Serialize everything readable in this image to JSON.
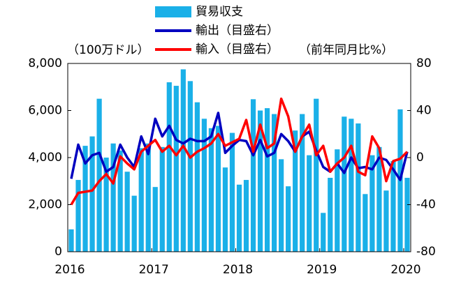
{
  "chart_data": {
    "type": "bar_line",
    "y_label": "（100万ドル）",
    "y2_label": "（前年同月比%）",
    "categories": [
      "2016",
      null,
      null,
      null,
      null,
      null,
      null,
      null,
      null,
      null,
      null,
      null,
      "2017",
      null,
      null,
      null,
      null,
      null,
      null,
      null,
      null,
      null,
      null,
      null,
      "2018",
      null,
      null,
      null,
      null,
      null,
      null,
      null,
      null,
      null,
      null,
      null,
      "2019",
      null,
      null,
      null,
      null,
      null,
      null,
      null,
      null,
      null,
      null,
      null,
      "2020"
    ],
    "series": [
      {
        "name": "貿易収支",
        "type": "bar",
        "color": "#1ab0e8",
        "values": [
          950,
          3050,
          4500,
          4900,
          6500,
          4000,
          4600,
          4300,
          3400,
          2380,
          4400,
          4600,
          2750,
          4450,
          7200,
          7050,
          7750,
          7250,
          6350,
          5650,
          5250,
          5350,
          3580,
          5050,
          2850,
          3050,
          6480,
          6000,
          6100,
          5850,
          3930,
          2780,
          5150,
          5850,
          4100,
          6500,
          1650,
          3140,
          4350,
          5740,
          5650,
          5450,
          2450,
          4100,
          4450,
          2600,
          3850,
          6050,
          3140
        ]
      },
      {
        "name": "輸出（目盛右）",
        "type": "line",
        "axis": "y2",
        "color": "#0000c0",
        "values": [
          -18,
          11,
          -5,
          2,
          4,
          -12,
          -8,
          11,
          0,
          -8,
          18,
          3,
          33,
          18,
          27,
          15,
          12,
          16,
          14,
          14,
          18,
          38,
          4,
          10,
          15,
          14,
          2,
          15,
          1,
          4,
          20,
          14,
          5,
          18,
          22,
          6,
          -8,
          -12,
          -5,
          -13,
          0,
          -9,
          -8,
          -10,
          0,
          -2,
          -10,
          -19,
          5
        ]
      },
      {
        "name": "輸入（目盛右）",
        "type": "line",
        "axis": "y2",
        "color": "#ff0000",
        "values": [
          -40,
          -30,
          -29,
          -28,
          -20,
          -14,
          -22,
          1,
          -5,
          -10,
          5,
          10,
          15,
          5,
          10,
          2,
          10,
          0,
          5,
          8,
          12,
          20,
          10,
          13,
          16,
          32,
          5,
          28,
          8,
          12,
          50,
          35,
          5,
          18,
          28,
          2,
          10,
          -12,
          -5,
          0,
          10,
          -12,
          -15,
          18,
          8,
          -20,
          -3,
          -1,
          5
        ]
      }
    ],
    "ylim": [
      0,
      8000
    ],
    "yticks": [
      {
        "value": 0,
        "label": "0"
      },
      {
        "value": 2000,
        "label": "2,000"
      },
      {
        "value": 4000,
        "label": "4,000"
      },
      {
        "value": 6000,
        "label": "6,000"
      },
      {
        "value": 8000,
        "label": "8,000"
      }
    ],
    "y2lim": [
      -80,
      80
    ],
    "y2ticks": [
      -80,
      -40,
      0,
      40,
      80
    ]
  }
}
